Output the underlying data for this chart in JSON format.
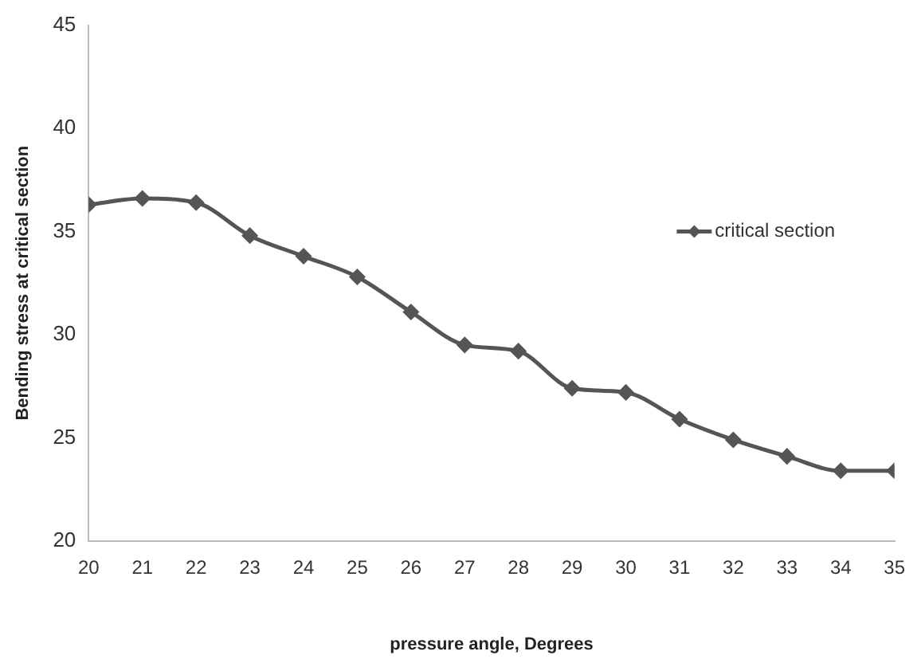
{
  "chart_data": {
    "type": "line",
    "xlabel": "pressure angle, Degrees",
    "ylabel": "Bending stress at critical section",
    "x": [
      20,
      21,
      22,
      23,
      24,
      25,
      26,
      27,
      28,
      29,
      30,
      31,
      32,
      33,
      34,
      35
    ],
    "series": [
      {
        "name": "critical section",
        "color": "#555555",
        "values": [
          36.3,
          36.6,
          36.4,
          34.8,
          33.8,
          32.8,
          31.1,
          29.5,
          29.2,
          27.4,
          27.2,
          25.9,
          24.9,
          24.1,
          23.4,
          23.4
        ]
      }
    ],
    "xlim": [
      20,
      35
    ],
    "xticks": [
      20,
      21,
      22,
      23,
      24,
      25,
      26,
      27,
      28,
      29,
      30,
      31,
      32,
      33,
      34,
      35
    ],
    "ylim": [
      20,
      45
    ],
    "yticks": [
      20,
      25,
      30,
      35,
      40,
      45
    ],
    "grid": false,
    "legend": "right",
    "marker": "diamond",
    "line_style": "solid"
  }
}
